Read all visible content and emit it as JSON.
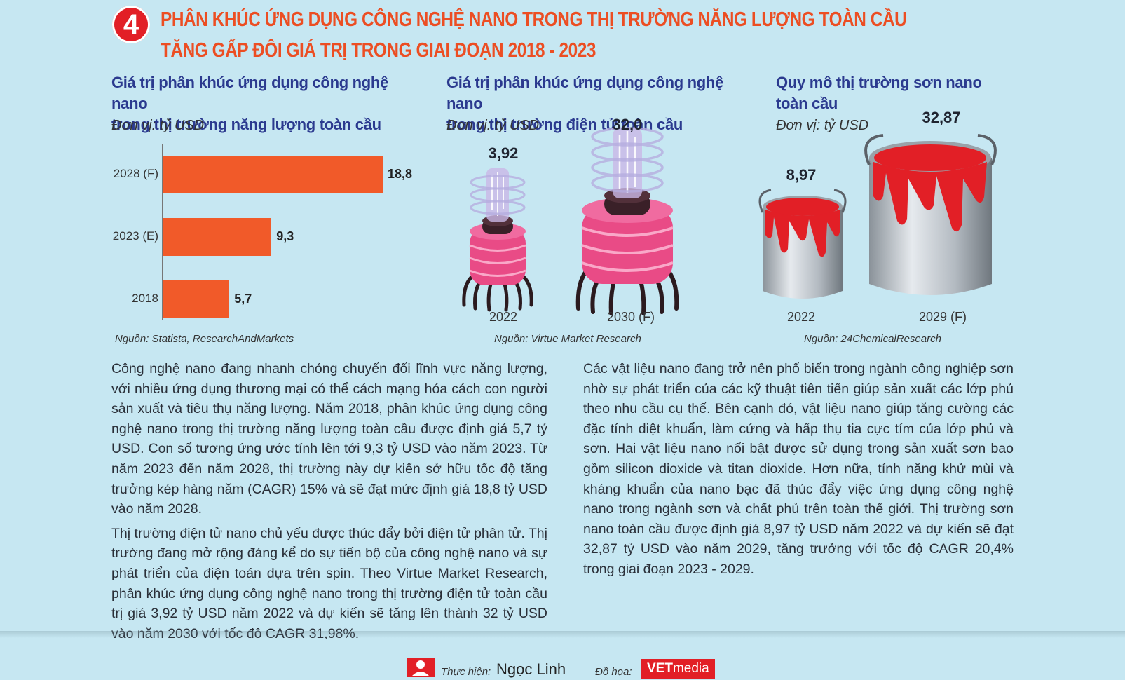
{
  "heading": {
    "number": "4",
    "title_line1": "PHÂN KHÚC ỨNG DỤNG CÔNG NGHỆ NANO TRONG THỊ TRƯỜNG NĂNG LƯỢNG TOÀN CẦU",
    "title_line2": "TĂNG GẤP ĐÔI GIÁ TRỊ TRONG GIAI ĐOẠN 2018 - 2023"
  },
  "colors": {
    "accent": "#ec4e23",
    "bar": "#f15a29",
    "title_blue": "#2b3a8f",
    "background": "#c6e7f2",
    "paint_red": "#e21f26"
  },
  "chart_data": [
    {
      "type": "bar",
      "orientation": "horizontal",
      "title_line1": "Giá trị phân khúc ứng dụng công nghệ nano",
      "title_line2": "trong thị trường năng lượng toàn cầu",
      "unit": "Đơn vị: tỷ USD",
      "categories": [
        "2028 (F)",
        "2023 (E)",
        "2018"
      ],
      "values": [
        18.8,
        9.3,
        5.7
      ],
      "value_labels": [
        "18,8",
        "9,3",
        "5,7"
      ],
      "xlim": [
        0,
        20
      ],
      "source": "Nguồn: Statista, ResearchAndMarkets"
    },
    {
      "type": "bar",
      "style": "pictorial",
      "title_line1": "Giá trị phân khúc ứng dụng công nghệ nano",
      "title_line2": "trong thị trường điện tử toàn cầu",
      "unit": "Đơn vị: tỷ USD",
      "categories": [
        "2022",
        "2030 (F)"
      ],
      "values": [
        3.92,
        32.0
      ],
      "value_labels": [
        "3,92",
        "32,0"
      ],
      "source": "Nguồn: Virtue Market Research"
    },
    {
      "type": "bar",
      "style": "pictorial",
      "title_line1": "Quy mô thị trường sơn nano",
      "title_line2": "toàn cầu",
      "unit": "Đơn vị: tỷ USD",
      "categories": [
        "2022",
        "2029 (F)"
      ],
      "values": [
        8.97,
        32.87
      ],
      "value_labels": [
        "8,97",
        "32,87"
      ],
      "source": "Nguồn: 24ChemicalResearch"
    }
  ],
  "body": {
    "left_p1": "Công nghệ nano đang nhanh chóng chuyển đổi lĩnh vực năng lượng, với nhiều ứng dụng thương mại có thể cách mạng hóa cách con người sản xuất và tiêu thụ năng lượng. Năm 2018, phân khúc ứng dụng công nghệ nano trong thị trường năng lượng toàn cầu được định giá 5,7 tỷ USD. Con số tương ứng ước tính lên tới 9,3 tỷ USD vào năm 2023. Từ năm 2023 đến năm 2028, thị trường này dự kiến sở hữu tốc độ tăng trưởng kép hàng năm (CAGR) 15% và sẽ đạt mức định giá 18,8 tỷ USD vào năm 2028.",
    "left_p2": "Thị trường điện tử nano chủ yếu được thúc đẩy bởi điện tử phân tử. Thị trường đang mở rộng đáng kể do sự tiến bộ của công nghệ nano và sự phát triển của điện toán dựa trên spin. Theo Virtue Market Research, phân khúc ứng dụng công nghệ nano trong thị trường điện tử toàn cầu trị giá 3,92 tỷ USD năm 2022 và dự kiến sẽ tăng lên thành 32 tỷ USD vào năm 2030 với tốc độ CAGR 31,98%.",
    "right_p1": "Các vật liệu nano đang trở nên phổ biến trong ngành công nghiệp sơn nhờ sự phát triển của các kỹ thuật tiên tiến giúp sản xuất các lớp phủ theo nhu cầu cụ thể. Bên cạnh đó, vật liệu nano giúp tăng cường các đặc tính diệt khuẩn, làm cứng và hấp thụ tia cực tím của lớp phủ và sơn. Hai vật liệu nano nổi bật được sử dụng trong sản xuất sơn bao gồm silicon dioxide và titan dioxide. Hơn nữa, tính năng khử mùi và kháng khuẩn của nano bạc đã thúc đẩy việc ứng dụng công nghệ nano trong ngành sơn và chất phủ trên toàn thế giới. Thị trường sơn nano toàn cầu được định giá 8,97 tỷ USD năm 2022 và dự kiến sẽ đạt 32,87 tỷ USD vào năm 2029, tăng trưởng với tốc độ CAGR 20,4% trong giai đoạn 2023 - 2029."
  },
  "footer": {
    "author_label": "Thực hiện:",
    "author_name": "Ngọc Linh",
    "graphic_label": "Đồ họa:",
    "logo_bold": "VET",
    "logo_light": "media"
  }
}
